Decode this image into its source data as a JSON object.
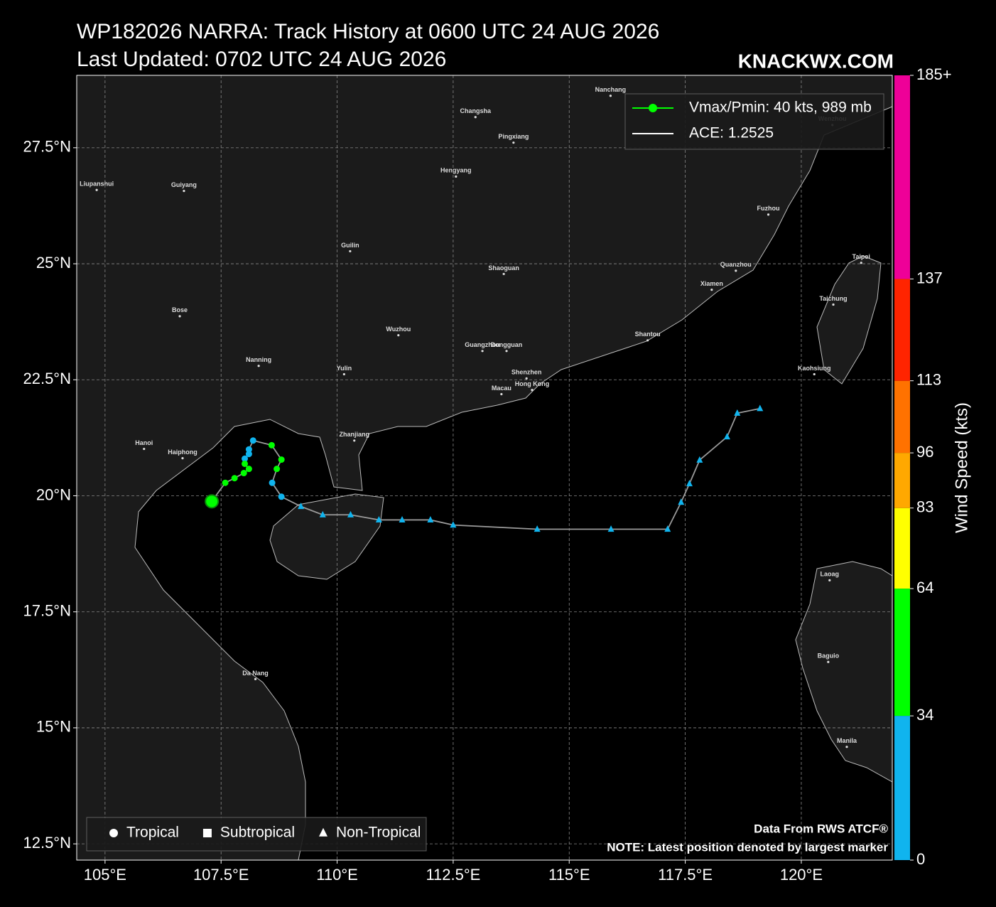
{
  "chart_data": {
    "type": "track",
    "title": "WP182026 NARRA: Track History at 0600 UTC 24 AUG 2026",
    "subtitle": "Last Updated: 0702 UTC 24 AUG 2026",
    "brand": "KNACKWX.COM",
    "notes": [
      "Data From RWS ATCF®",
      "NOTE: Latest position denoted by largest marker"
    ],
    "x": [
      119.11,
      118.62,
      118.4,
      117.81,
      117.59,
      117.41,
      117.12,
      115.9,
      114.31,
      112.5,
      112.01,
      111.4,
      110.9,
      110.29,
      109.69,
      109.22,
      108.8,
      108.6,
      108.7,
      108.8,
      108.59,
      108.19,
      108.1,
      108.1,
      108.01,
      108.01,
      108.1,
      107.99,
      107.79,
      107.59,
      107.3
    ],
    "y": [
      21.88,
      21.78,
      21.27,
      20.77,
      20.26,
      19.86,
      19.28,
      19.28,
      19.28,
      19.37,
      19.48,
      19.48,
      19.48,
      19.59,
      19.59,
      19.77,
      19.98,
      20.28,
      20.58,
      20.78,
      21.09,
      21.19,
      21.0,
      20.9,
      20.8,
      20.69,
      20.58,
      20.49,
      20.38,
      20.28,
      19.88
    ],
    "wind": [
      25,
      25,
      25,
      25,
      25,
      25,
      25,
      25,
      25,
      25,
      25,
      25,
      25,
      25,
      25,
      25,
      30,
      30,
      35,
      35,
      35,
      30,
      30,
      30,
      30,
      35,
      35,
      35,
      35,
      35,
      40
    ],
    "kinds": [
      "triangle",
      "triangle",
      "triangle",
      "triangle",
      "triangle",
      "triangle",
      "triangle",
      "triangle",
      "triangle",
      "triangle",
      "triangle",
      "triangle",
      "triangle",
      "triangle",
      "triangle",
      "triangle",
      "circle",
      "circle",
      "circle",
      "circle",
      "circle",
      "circle",
      "circle",
      "circle",
      "circle",
      "circle",
      "circle",
      "circle",
      "circle",
      "circle",
      "circle"
    ],
    "line_color": "#9a9a9a",
    "xlim": [
      104.39,
      121.96
    ],
    "ylim": [
      12.15,
      29.06
    ],
    "xticks": [
      {
        "value": 105,
        "label": "105°E"
      },
      {
        "value": 107.5,
        "label": "107.5°E"
      },
      {
        "value": 110,
        "label": "110°E"
      },
      {
        "value": 112.5,
        "label": "112.5°E"
      },
      {
        "value": 115,
        "label": "115°E"
      },
      {
        "value": 117.5,
        "label": "117.5°E"
      },
      {
        "value": 120,
        "label": "120°E"
      }
    ],
    "yticks": [
      {
        "value": 12.5,
        "label": "12.5°N"
      },
      {
        "value": 15,
        "label": "15°N"
      },
      {
        "value": 17.5,
        "label": "17.5°N"
      },
      {
        "value": 20,
        "label": "20°N"
      },
      {
        "value": 22.5,
        "label": "22.5°N"
      },
      {
        "value": 25,
        "label": "25°N"
      },
      {
        "value": 27.5,
        "label": "27.5°N"
      }
    ],
    "grid": true,
    "legend": {
      "position": "upper right",
      "entries": [
        "Vmax/Pmin: 40 kts, 989 mb",
        "ACE: 1.2525"
      ],
      "colors": [
        "#00ff00",
        "#ffffff"
      ]
    },
    "marker_legend": {
      "position": "lower left",
      "entries": [
        "Tropical",
        "Subtropical",
        "Non-Tropical"
      ],
      "shapes": [
        "circle",
        "square",
        "triangle"
      ]
    },
    "colorbar": {
      "label": "Wind Speed (kts)",
      "lim": [
        0,
        185
      ],
      "ticks": [
        0,
        34,
        64,
        83,
        96,
        113,
        137,
        {
          "value": 185,
          "label": "185+"
        }
      ],
      "colors": [
        "#10b4ee",
        "#00ff00",
        "#ffff00",
        "#ffa800",
        "#ff7200",
        "#ff2400",
        "#ee0098"
      ]
    },
    "cities": [
      {
        "name": "Nanchang",
        "lon": 115.89,
        "lat": 28.62
      },
      {
        "name": "Changsha",
        "lon": 112.98,
        "lat": 28.16
      },
      {
        "name": "Pingxiang",
        "lon": 113.8,
        "lat": 27.61
      },
      {
        "name": "Wenzhou",
        "lon": 120.67,
        "lat": 27.99
      },
      {
        "name": "Liupanshui",
        "lon": 104.82,
        "lat": 26.59
      },
      {
        "name": "Guiyang",
        "lon": 106.7,
        "lat": 26.57
      },
      {
        "name": "Hengyang",
        "lon": 112.56,
        "lat": 26.88
      },
      {
        "name": "Fuzhou",
        "lon": 119.29,
        "lat": 26.06
      },
      {
        "name": "Guilin",
        "lon": 110.28,
        "lat": 25.27
      },
      {
        "name": "Shaoguan",
        "lon": 113.59,
        "lat": 24.78
      },
      {
        "name": "Quanzhou",
        "lon": 118.59,
        "lat": 24.85
      },
      {
        "name": "Xiamen",
        "lon": 118.07,
        "lat": 24.44
      },
      {
        "name": "Taipei",
        "lon": 121.29,
        "lat": 25.02
      },
      {
        "name": "Taichung",
        "lon": 120.69,
        "lat": 24.12
      },
      {
        "name": "Bose",
        "lon": 106.61,
        "lat": 23.87
      },
      {
        "name": "Wuzhou",
        "lon": 111.32,
        "lat": 23.46
      },
      {
        "name": "Shantou",
        "lon": 116.69,
        "lat": 23.35
      },
      {
        "name": "Guangzhou",
        "lon": 113.13,
        "lat": 23.12
      },
      {
        "name": "Dongguan",
        "lon": 113.65,
        "lat": 23.12
      },
      {
        "name": "Nanning",
        "lon": 108.31,
        "lat": 22.8
      },
      {
        "name": "Yulin",
        "lon": 110.15,
        "lat": 22.62
      },
      {
        "name": "Kaohsiung",
        "lon": 120.28,
        "lat": 22.62
      },
      {
        "name": "Shenzhen",
        "lon": 114.08,
        "lat": 22.53
      },
      {
        "name": "Hong Kong",
        "lon": 114.2,
        "lat": 22.28
      },
      {
        "name": "Macau",
        "lon": 113.54,
        "lat": 22.19
      },
      {
        "name": "Zhanjiang",
        "lon": 110.37,
        "lat": 21.19
      },
      {
        "name": "Hanoi",
        "lon": 105.84,
        "lat": 21.01
      },
      {
        "name": "Haiphong",
        "lon": 106.67,
        "lat": 20.81
      },
      {
        "name": "Da Nang",
        "lon": 108.24,
        "lat": 16.05
      },
      {
        "name": "Laoag",
        "lon": 120.61,
        "lat": 18.18
      },
      {
        "name": "Baguio",
        "lon": 120.58,
        "lat": 16.42
      },
      {
        "name": "Manila",
        "lon": 120.98,
        "lat": 14.59
      }
    ]
  }
}
